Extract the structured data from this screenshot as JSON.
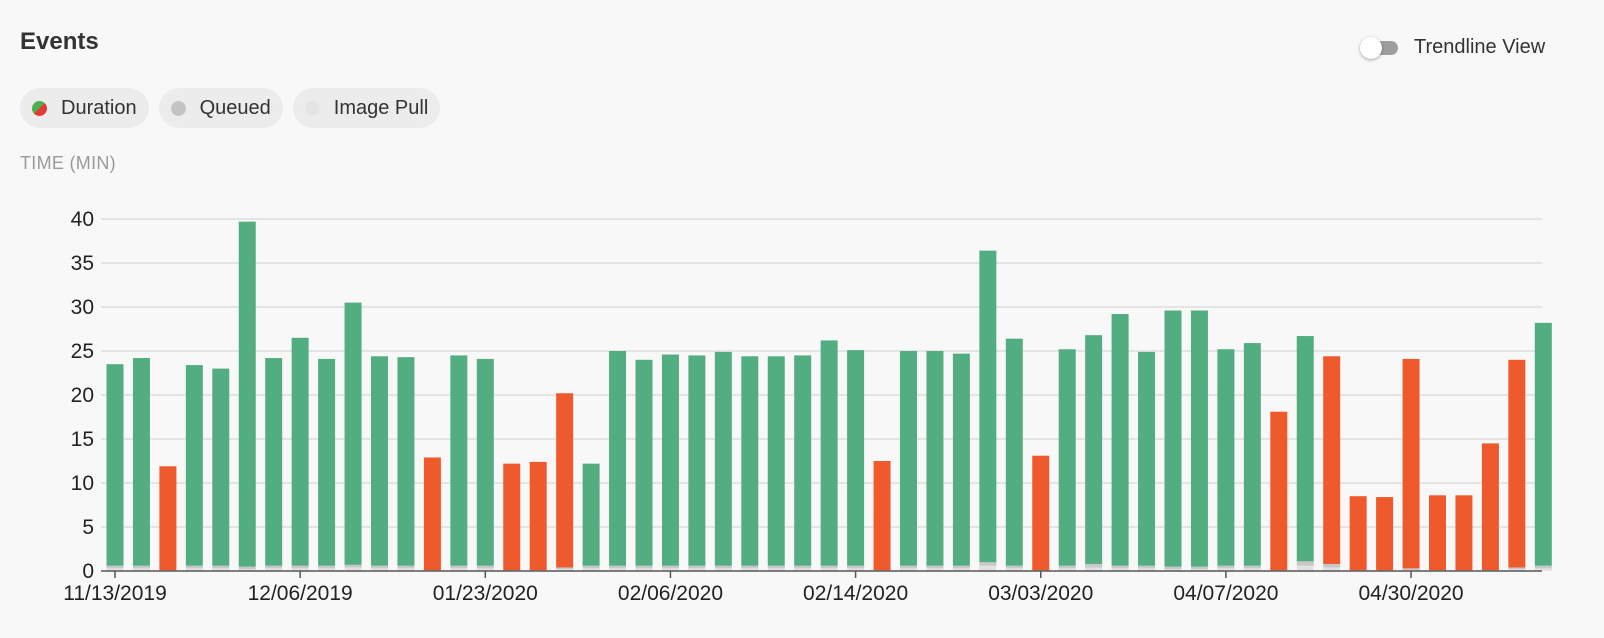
{
  "header": {
    "title": "Events",
    "toggle_label": "Trendline View"
  },
  "legend": {
    "items": [
      {
        "label": "Duration"
      },
      {
        "label": "Queued"
      },
      {
        "label": "Image Pull"
      }
    ]
  },
  "chart_data": {
    "type": "bar",
    "stacked": true,
    "ylabel": "TIME (MIN)",
    "ylim": [
      0,
      40
    ],
    "yticks": [
      0,
      5,
      10,
      15,
      20,
      25,
      30,
      35,
      40
    ],
    "grid": true,
    "xtick_labels": [
      "11/13/2019",
      "12/06/2019",
      "01/23/2020",
      "02/06/2020",
      "02/14/2020",
      "03/03/2020",
      "04/07/2020",
      "04/30/2020"
    ],
    "xtick_bar_index": [
      0,
      7,
      14,
      21,
      28,
      35,
      42,
      49
    ],
    "colors": {
      "success": "#52ae80",
      "failure": "#ee5a2c",
      "queued": "#c8c8c8",
      "image_pull": "#e2e2e2",
      "grid": "#dddddd",
      "axis": "#555555"
    },
    "series": [
      {
        "name": "Duration",
        "values": [
          23.5,
          24.2,
          11.9,
          23.4,
          23.0,
          39.7,
          24.2,
          26.5,
          24.1,
          30.5,
          24.4,
          24.3,
          12.9,
          24.5,
          24.1,
          12.2,
          12.4,
          20.2,
          12.2,
          25.0,
          24.0,
          24.6,
          24.5,
          24.9,
          24.4,
          24.4,
          24.5,
          26.2,
          25.1,
          12.5,
          25.0,
          25.0,
          24.7,
          36.4,
          26.4,
          13.1,
          25.2,
          26.8,
          29.2,
          24.9,
          29.6,
          29.6,
          25.2,
          25.9,
          18.1,
          26.7,
          24.4,
          8.5,
          8.4,
          24.1,
          8.6,
          8.6,
          14.5,
          24.0,
          28.2
        ],
        "status": [
          "success",
          "success",
          "failure",
          "success",
          "success",
          "success",
          "success",
          "success",
          "success",
          "success",
          "success",
          "success",
          "failure",
          "success",
          "success",
          "failure",
          "failure",
          "failure",
          "success",
          "success",
          "success",
          "success",
          "success",
          "success",
          "success",
          "success",
          "success",
          "success",
          "success",
          "failure",
          "success",
          "success",
          "success",
          "success",
          "success",
          "failure",
          "success",
          "success",
          "success",
          "success",
          "success",
          "success",
          "success",
          "success",
          "failure",
          "success",
          "failure",
          "failure",
          "failure",
          "failure",
          "failure",
          "failure",
          "failure",
          "failure",
          "success"
        ]
      },
      {
        "name": "Queued",
        "values": [
          0.3,
          0.3,
          0.1,
          0.3,
          0.3,
          0.3,
          0.3,
          0.3,
          0.3,
          0.3,
          0.3,
          0.3,
          0.1,
          0.3,
          0.3,
          0.1,
          0.1,
          0.2,
          0.3,
          0.3,
          0.3,
          0.3,
          0.3,
          0.3,
          0.3,
          0.3,
          0.3,
          0.3,
          0.3,
          0.1,
          0.3,
          0.3,
          0.3,
          0.4,
          0.3,
          0.1,
          0.3,
          0.4,
          0.3,
          0.3,
          0.3,
          0.3,
          0.3,
          0.3,
          0.1,
          0.5,
          0.4,
          0.1,
          0.1,
          0.2,
          0.1,
          0.1,
          0.1,
          0.2,
          0.3
        ]
      },
      {
        "name": "Image Pull",
        "values": [
          0.3,
          0.3,
          0.0,
          0.3,
          0.3,
          0.2,
          0.3,
          0.3,
          0.3,
          0.4,
          0.3,
          0.3,
          0.0,
          0.3,
          0.3,
          0.0,
          0.0,
          0.2,
          0.3,
          0.3,
          0.3,
          0.3,
          0.3,
          0.3,
          0.3,
          0.3,
          0.3,
          0.3,
          0.3,
          0.0,
          0.3,
          0.3,
          0.3,
          0.6,
          0.3,
          0.0,
          0.3,
          0.4,
          0.3,
          0.3,
          0.2,
          0.2,
          0.3,
          0.3,
          0.0,
          0.6,
          0.4,
          0.0,
          0.0,
          0.1,
          0.0,
          0.0,
          0.0,
          0.2,
          0.3
        ]
      }
    ]
  }
}
